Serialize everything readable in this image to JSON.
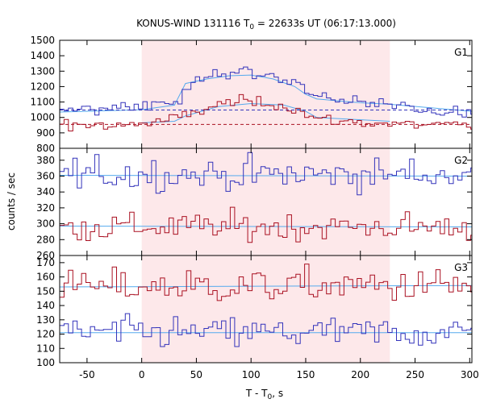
{
  "chart_data": {
    "type": "line",
    "title_main": "KONUS-WIND 131116 T",
    "title_sub": "0",
    "title_rest": " = 22633s UT (06:17:13.000)",
    "xlabel_main": "T - T",
    "xlabel_sub": "0",
    "xlabel_rest": ", s",
    "ylabel": "counts / sec",
    "xlim": [
      -75,
      302
    ],
    "xticks": [
      "-50",
      "0",
      "50",
      "100",
      "150",
      "200",
      "250",
      "300"
    ],
    "highlight_interval": [
      0,
      227
    ],
    "bin_width": 4,
    "colors": {
      "blue": "#3333bb",
      "red": "#aa1122",
      "fit": "#55aaee",
      "highlight": "#fde8ea"
    },
    "panels": [
      {
        "label": "G1",
        "ylim": [
          800,
          1500
        ],
        "yticks": [
          "800",
          "900",
          "1000",
          "1100",
          "1200",
          "1300",
          "1400",
          "1500"
        ],
        "series": [
          {
            "color": "blue",
            "x": [
              -75,
              -40,
              0,
              20,
              35,
              40,
              60,
              75,
              90,
              100,
              120,
              140,
              150,
              160,
              180,
              227,
              260,
              302
            ],
            "y": [
              1040,
              1060,
              1080,
              1095,
              1120,
              1200,
              1260,
              1285,
              1300,
              1295,
              1270,
              1230,
              1185,
              1140,
              1110,
              1080,
              1055,
              1030
            ],
            "noise": 20
          },
          {
            "color": "red",
            "x": [
              -75,
              -40,
              0,
              20,
              40,
              60,
              75,
              90,
              100,
              120,
              140,
              150,
              160,
              180,
              227,
              260,
              302
            ],
            "y": [
              950,
              955,
              960,
              975,
              1010,
              1060,
              1090,
              1105,
              1100,
              1090,
              1060,
              1020,
              990,
              975,
              960,
              950,
              945
            ],
            "noise": 18
          }
        ],
        "fits": [
          {
            "color": "fit",
            "x": [
              -75,
              0,
              30,
              40,
              60,
              80,
              100,
              120,
              140,
              150,
              160,
              200,
              227,
              302
            ],
            "y": [
              1035,
              1050,
              1080,
              1220,
              1250,
              1270,
              1275,
              1250,
              1200,
              1150,
              1120,
              1095,
              1085,
              1040
            ]
          },
          {
            "color": "fit",
            "x": [
              0,
              30,
              40,
              70,
              100,
              130,
              150,
              160,
              227
            ],
            "y": [
              965,
              975,
              1010,
              1070,
              1090,
              1080,
              1040,
              1000,
              975
            ]
          }
        ],
        "backgrounds": [
          {
            "color": "blue",
            "y": 1048
          },
          {
            "color": "red",
            "y": 955
          }
        ]
      },
      {
        "label": "G2",
        "ylim": [
          260,
          395
        ],
        "yticks": [
          "260",
          "280",
          "300",
          "320",
          "340",
          "360",
          "380"
        ],
        "series": [
          {
            "color": "blue",
            "x": [
              -75,
              302
            ],
            "y": [
              362,
              362
            ],
            "noise": 10
          },
          {
            "color": "red",
            "x": [
              -75,
              302
            ],
            "y": [
              296,
              296
            ],
            "noise": 9
          }
        ],
        "fits": [
          {
            "color": "fit",
            "x": [
              -75,
              302
            ],
            "y": [
              361,
              360
            ]
          },
          {
            "color": "fit",
            "x": [
              -75,
              302
            ],
            "y": [
              297,
              296
            ]
          }
        ],
        "backgrounds": []
      },
      {
        "label": "G3",
        "ylim": [
          100,
          175
        ],
        "yticks": [
          "100",
          "110",
          "120",
          "130",
          "140",
          "150",
          "160",
          "170"
        ],
        "series": [
          {
            "color": "red",
            "x": [
              -75,
              302
            ],
            "y": [
              153,
              154
            ],
            "noise": 6
          },
          {
            "color": "blue",
            "x": [
              -75,
              302
            ],
            "y": [
              121,
              121
            ],
            "noise": 5.5
          }
        ],
        "fits": [
          {
            "color": "fit",
            "x": [
              -75,
              302
            ],
            "y": [
              153,
              154
            ]
          },
          {
            "color": "fit",
            "x": [
              -75,
              302
            ],
            "y": [
              121,
              121
            ]
          }
        ],
        "backgrounds": []
      }
    ]
  }
}
